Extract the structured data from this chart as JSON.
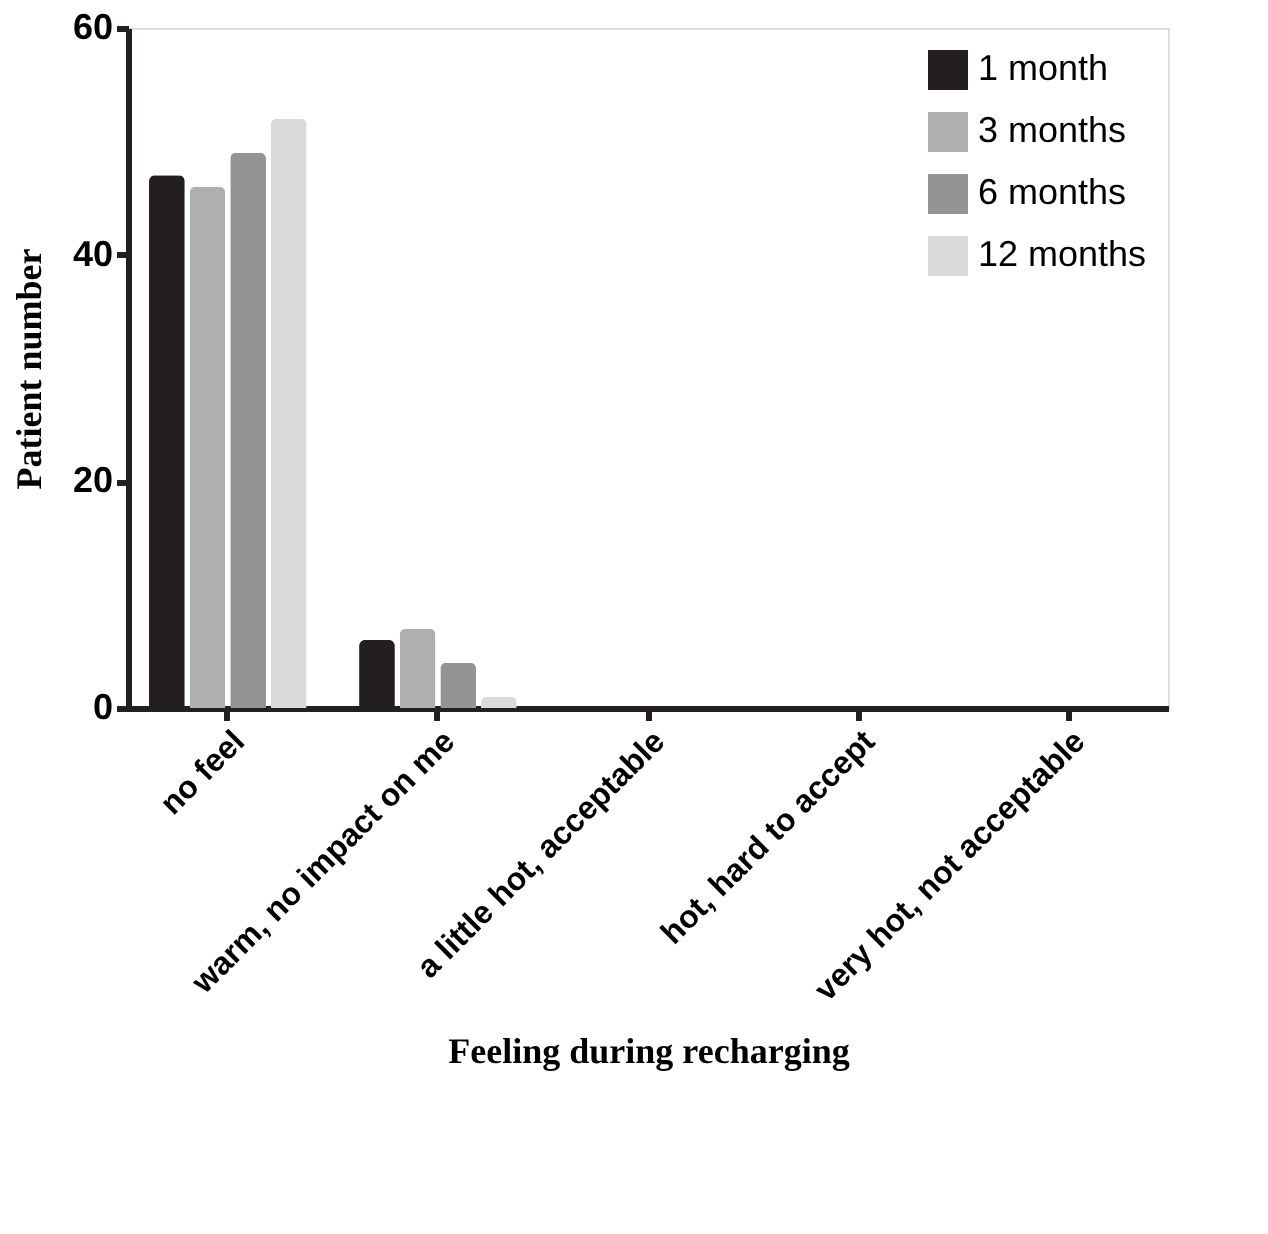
{
  "chart_data": {
    "type": "bar",
    "xlabel": "Feeling during recharging",
    "ylabel": "Patient number",
    "categories": [
      "no feel",
      "warm, no impact on me",
      "a little hot, acceptable",
      "hot, hard to accept",
      "very hot, not acceptable"
    ],
    "series": [
      {
        "name": "1 month",
        "color": "#231f20",
        "values": [
          47,
          6,
          0,
          0,
          0
        ]
      },
      {
        "name": "3 months",
        "color": "#aeafb1",
        "values": [
          46,
          7,
          0,
          0,
          0
        ]
      },
      {
        "name": "6 months",
        "color": "#939496",
        "values": [
          49,
          4,
          0,
          0,
          0
        ]
      },
      {
        "name": "12 months",
        "color": "#d9dadb",
        "values": [
          52,
          1,
          0,
          0,
          0
        ]
      }
    ],
    "ylim": [
      0,
      60
    ],
    "yticks": [
      0,
      20,
      40,
      60
    ],
    "grid": false,
    "legend": "top right"
  }
}
